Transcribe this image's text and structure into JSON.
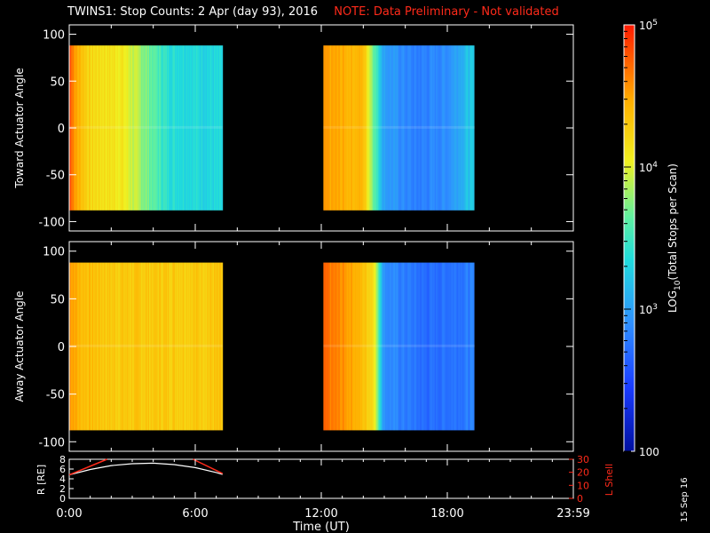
{
  "header": {
    "title": "TWINS1: Stop Counts:  2 Apr (day  93), 2016",
    "note": "NOTE: Data Preliminary - Not validated"
  },
  "footer": {
    "date_stamp": "15 Sep 16"
  },
  "chart_data": [
    {
      "type": "heatmap",
      "panel": "toward",
      "ylabel": "Toward Actuator Angle",
      "ylim": [
        -110,
        110
      ],
      "yticks": [
        100,
        50,
        0,
        -50,
        -100
      ],
      "xlim": [
        0,
        24
      ],
      "data_blocks": [
        {
          "t_start": 0.0,
          "t_end": 7.3,
          "angle_range": [
            -88,
            88
          ]
        },
        {
          "t_start": 12.1,
          "t_end": 19.3,
          "angle_range": [
            -88,
            88
          ]
        }
      ],
      "log10_counts_profile": {
        "t": [
          0.0,
          0.3,
          1.0,
          2.5,
          4.7,
          7.3,
          12.1,
          14.0,
          15.0,
          16.5,
          18.0,
          19.0
        ],
        "value": [
          4.9,
          4.5,
          4.2,
          4.1,
          3.4,
          3.3,
          4.5,
          4.4,
          3.0,
          2.8,
          2.9,
          3.2
        ]
      }
    },
    {
      "type": "heatmap",
      "panel": "away",
      "ylabel": "Away Actuator Angle",
      "ylim": [
        -110,
        110
      ],
      "yticks": [
        100,
        50,
        0,
        -50,
        -100
      ],
      "xlim": [
        0,
        24
      ],
      "data_blocks": [
        {
          "t_start": 0.0,
          "t_end": 7.3,
          "angle_range": [
            -88,
            88
          ]
        },
        {
          "t_start": 12.1,
          "t_end": 19.3,
          "angle_range": [
            -88,
            88
          ]
        }
      ],
      "log10_counts_profile": {
        "t": [
          0.0,
          0.5,
          2.0,
          5.0,
          7.3,
          12.1,
          13.5,
          14.5,
          15.0,
          17.0,
          19.0
        ],
        "value": [
          4.6,
          4.4,
          4.3,
          4.3,
          4.3,
          4.7,
          4.5,
          4.2,
          2.9,
          2.7,
          2.8
        ]
      }
    },
    {
      "type": "line",
      "panel": "orbit",
      "xlabel": "Time (UT)",
      "xticks": [
        "0:00",
        "6:00",
        "12:00",
        "18:00",
        "23:59"
      ],
      "xlim": [
        0,
        24
      ],
      "series": [
        {
          "axis": "left",
          "ylabel": "R [RE]",
          "ylim": [
            0,
            8
          ],
          "yticks": [
            0,
            2,
            4,
            6,
            8
          ],
          "color": "#ffffff",
          "x": [
            0.0,
            1.0,
            2.0,
            3.0,
            4.0,
            5.0,
            6.0,
            7.0,
            7.3
          ],
          "y": [
            4.8,
            5.9,
            6.7,
            7.1,
            7.2,
            6.9,
            6.3,
            5.3,
            4.9
          ]
        },
        {
          "axis": "right",
          "ylabel": "L Shell",
          "ylim": [
            0,
            30
          ],
          "yticks": [
            0,
            10,
            20,
            30
          ],
          "color": "#ff2a1a",
          "segments": [
            {
              "x": [
                0.0,
                1.8
              ],
              "y": [
                18,
                30
              ]
            },
            {
              "x": [
                5.9,
                7.3
              ],
              "y": [
                30,
                19
              ]
            }
          ]
        }
      ]
    },
    {
      "type": "colorbar",
      "label_prefix": "LOG",
      "label_sub": "10",
      "label_rest": "(Total Stops per Scan)",
      "range_log10": [
        2,
        5
      ],
      "tick_labels": [
        {
          "value": 5,
          "base": "10",
          "exp": "5"
        },
        {
          "value": 4,
          "base": "10",
          "exp": "4"
        },
        {
          "value": 3,
          "base": "10",
          "exp": "3"
        },
        {
          "value": 2,
          "base": "100",
          "exp": ""
        }
      ]
    }
  ]
}
